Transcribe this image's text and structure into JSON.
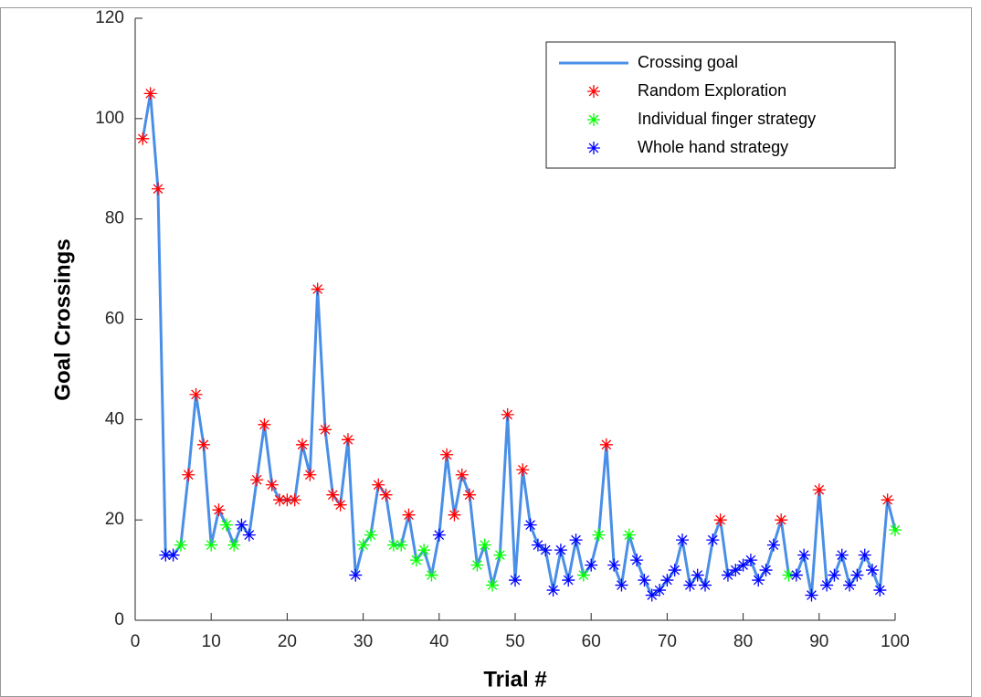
{
  "chart_data": {
    "type": "line",
    "xlabel": "Trial #",
    "ylabel": "Goal Crossings",
    "x": [
      1,
      2,
      3,
      4,
      5,
      6,
      7,
      8,
      9,
      10,
      11,
      12,
      13,
      14,
      15,
      16,
      17,
      18,
      19,
      20,
      21,
      22,
      23,
      24,
      25,
      26,
      27,
      28,
      29,
      30,
      31,
      32,
      33,
      34,
      35,
      36,
      37,
      38,
      39,
      40,
      41,
      42,
      43,
      44,
      45,
      46,
      47,
      48,
      49,
      50,
      51,
      52,
      53,
      54,
      55,
      56,
      57,
      58,
      59,
      60,
      61,
      62,
      63,
      64,
      65,
      66,
      67,
      68,
      69,
      70,
      71,
      72,
      73,
      74,
      75,
      76,
      77,
      78,
      79,
      80,
      81,
      82,
      83,
      84,
      85,
      86,
      87,
      88,
      89,
      90,
      91,
      92,
      93,
      94,
      95,
      96,
      97,
      98,
      99,
      100
    ],
    "series": [
      {
        "name": "Crossing goal",
        "color": "#4a8fe7",
        "style": "line",
        "values": [
          96,
          105,
          86,
          13,
          13,
          15,
          29,
          45,
          35,
          15,
          22,
          19,
          15,
          19,
          17,
          28,
          39,
          27,
          24,
          24,
          24,
          35,
          29,
          66,
          38,
          25,
          23,
          36,
          9,
          15,
          17,
          27,
          25,
          15,
          15,
          21,
          12,
          14,
          9,
          17,
          33,
          21,
          29,
          25,
          11,
          15,
          7,
          13,
          41,
          8,
          30,
          19,
          15,
          14,
          6,
          14,
          8,
          16,
          9,
          11,
          17,
          35,
          11,
          7,
          17,
          12,
          8,
          5,
          6,
          8,
          10,
          16,
          7,
          9,
          7,
          16,
          20,
          9,
          10,
          11,
          12,
          8,
          10,
          15,
          20,
          9,
          9,
          13,
          5,
          26,
          7,
          9,
          13,
          7,
          9,
          13,
          10,
          6,
          24,
          18
        ]
      },
      {
        "name": "Random Exploration",
        "color": "#ff0000",
        "style": "marker",
        "values": [
          96,
          105,
          86,
          null,
          null,
          null,
          29,
          45,
          35,
          null,
          22,
          null,
          null,
          null,
          null,
          28,
          39,
          27,
          24,
          24,
          24,
          35,
          29,
          66,
          38,
          25,
          23,
          36,
          null,
          null,
          null,
          27,
          25,
          null,
          null,
          21,
          null,
          null,
          null,
          null,
          33,
          21,
          29,
          25,
          null,
          null,
          null,
          null,
          41,
          null,
          30,
          null,
          null,
          null,
          null,
          null,
          null,
          null,
          null,
          null,
          null,
          35,
          null,
          null,
          null,
          null,
          null,
          null,
          null,
          null,
          null,
          null,
          null,
          null,
          null,
          null,
          20,
          null,
          null,
          null,
          null,
          null,
          null,
          null,
          20,
          null,
          null,
          null,
          null,
          26,
          null,
          null,
          null,
          null,
          null,
          null,
          null,
          null,
          24,
          null
        ]
      },
      {
        "name": "Individual finger strategy",
        "color": "#00ff00",
        "style": "marker",
        "values": [
          null,
          null,
          null,
          null,
          null,
          15,
          null,
          null,
          null,
          15,
          null,
          19,
          15,
          null,
          null,
          null,
          null,
          null,
          null,
          null,
          null,
          null,
          null,
          null,
          null,
          null,
          null,
          null,
          null,
          15,
          17,
          null,
          null,
          15,
          15,
          null,
          12,
          14,
          9,
          null,
          null,
          null,
          null,
          null,
          11,
          15,
          7,
          13,
          null,
          null,
          null,
          null,
          null,
          null,
          null,
          null,
          null,
          null,
          9,
          null,
          17,
          null,
          null,
          null,
          17,
          null,
          null,
          null,
          null,
          null,
          null,
          null,
          null,
          null,
          null,
          null,
          null,
          null,
          null,
          null,
          null,
          null,
          null,
          null,
          null,
          9,
          null,
          null,
          null,
          null,
          null,
          null,
          null,
          null,
          null,
          null,
          null,
          null,
          null,
          18
        ]
      },
      {
        "name": "Whole hand strategy",
        "color": "#0000ff",
        "style": "marker",
        "values": [
          null,
          null,
          null,
          13,
          13,
          null,
          null,
          null,
          null,
          null,
          null,
          null,
          null,
          19,
          17,
          null,
          null,
          null,
          null,
          null,
          null,
          null,
          null,
          null,
          null,
          null,
          null,
          null,
          9,
          null,
          null,
          null,
          null,
          null,
          null,
          null,
          null,
          null,
          null,
          17,
          null,
          null,
          null,
          null,
          null,
          null,
          null,
          null,
          null,
          8,
          null,
          19,
          15,
          14,
          6,
          14,
          8,
          16,
          null,
          11,
          null,
          null,
          11,
          7,
          null,
          12,
          8,
          5,
          6,
          8,
          10,
          16,
          7,
          9,
          7,
          16,
          null,
          9,
          10,
          11,
          12,
          8,
          10,
          15,
          null,
          null,
          9,
          13,
          5,
          null,
          7,
          9,
          13,
          7,
          9,
          13,
          10,
          6,
          null,
          null
        ]
      }
    ],
    "xlim": [
      0,
      100
    ],
    "xticks": [
      0,
      10,
      20,
      30,
      40,
      50,
      60,
      70,
      80,
      90,
      100
    ],
    "ylim": [
      0,
      120
    ],
    "yticks": [
      0,
      20,
      40,
      60,
      80,
      100,
      120
    ],
    "grid": false,
    "legend": "upper right"
  }
}
